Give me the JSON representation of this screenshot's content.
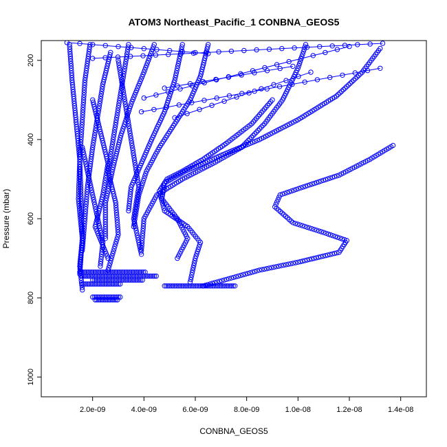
{
  "chart_data": {
    "type": "scatter",
    "title": "ATOM3 Northeast_Pacific_1 CONBNA_GEOS5",
    "xlabel": "CONBNA_GEOS5",
    "ylabel": "Pressure (mbar)",
    "xlim": [
      0,
      1.5e-08
    ],
    "ylim": [
      1050,
      150
    ],
    "y_inverted": true,
    "grid": false,
    "legend": "none",
    "x_ticks": [
      {
        "value": 2e-09,
        "label": "2.0e-09"
      },
      {
        "value": 4e-09,
        "label": "4.0e-09"
      },
      {
        "value": 6e-09,
        "label": "6.0e-09"
      },
      {
        "value": 8e-09,
        "label": "8.0e-09"
      },
      {
        "value": 1e-08,
        "label": "1.0e-08"
      },
      {
        "value": 1.2e-08,
        "label": "1.2e-08"
      },
      {
        "value": 1.4e-08,
        "label": "1.4e-08"
      }
    ],
    "y_ticks": [
      {
        "value": 200,
        "label": "200"
      },
      {
        "value": 400,
        "label": "400"
      },
      {
        "value": 600,
        "label": "600"
      },
      {
        "value": 800,
        "label": "800"
      },
      {
        "value": 1000,
        "label": "1000"
      }
    ],
    "marker": "open-circle",
    "color": "#0000ff",
    "series": [
      {
        "x": [
          1.9e-09,
          1.7e-09,
          1.6e-09,
          1.5e-09,
          1.55e-09,
          1.6e-09,
          1.5e-09,
          1.6e-09
        ],
        "y": [
          160,
          250,
          350,
          450,
          550,
          650,
          720,
          780
        ]
      },
      {
        "x": [
          1.1e-09,
          1.2e-09,
          1.35e-09,
          1.5e-09,
          1.45e-09,
          1.6e-09,
          1.5e-09
        ],
        "y": [
          160,
          250,
          350,
          450,
          550,
          650,
          740
        ]
      },
      {
        "x": [
          2.7e-09,
          2.4e-09,
          2.2e-09,
          2e-09,
          1.8e-09,
          1.7e-09,
          1.6e-09
        ],
        "y": [
          180,
          260,
          340,
          420,
          520,
          600,
          680
        ]
      },
      {
        "x": [
          3.4e-09,
          3.2e-09,
          3e-09,
          2.8e-09,
          2.6e-09,
          2.9e-09,
          3e-09,
          2.6e-09
        ],
        "y": [
          160,
          240,
          320,
          400,
          480,
          560,
          640,
          730
        ]
      },
      {
        "x": [
          4.4e-09,
          4e-09,
          3.5e-09,
          3.1e-09,
          2.8e-09,
          2.5e-09,
          2.5e-09
        ],
        "y": [
          160,
          230,
          310,
          390,
          470,
          560,
          650
        ]
      },
      {
        "x": [
          3e-09,
          3.2e-09,
          3.4e-09,
          3.6e-09,
          3.8e-09,
          3.6e-09,
          3.9e-09
        ],
        "y": [
          200,
          280,
          360,
          440,
          520,
          600,
          690
        ]
      },
      {
        "x": [
          5.5e-09,
          5.2e-09,
          4.8e-09,
          4.3e-09,
          3.9e-09,
          3.5e-09,
          3.4e-09
        ],
        "y": [
          160,
          250,
          330,
          400,
          460,
          520,
          580
        ]
      },
      {
        "x": [
          6.5e-09,
          6.2e-09,
          5.8e-09,
          5.2e-09,
          4.6e-09,
          4.1e-09,
          3.8e-09,
          3.6e-09
        ],
        "y": [
          160,
          240,
          300,
          360,
          420,
          480,
          540,
          620
        ]
      },
      {
        "x": [
          1.03e-08,
          1e-08,
          9.4e-09,
          8.7e-09,
          7.8e-09,
          6.7e-09,
          5.5e-09,
          4.5e-09,
          4e-09,
          3.9e-09
        ],
        "y": [
          160,
          220,
          300,
          360,
          420,
          460,
          500,
          540,
          600,
          680
        ]
      },
      {
        "x": [
          1.32e-08,
          1.25e-08,
          1.15e-08,
          1e-08,
          8.5e-09,
          7e-09,
          5.6e-09,
          4.8e-09,
          4.7e-09,
          5.3e-09,
          5.7e-09,
          5.3e-09
        ],
        "y": [
          170,
          230,
          290,
          350,
          400,
          440,
          480,
          510,
          550,
          600,
          650,
          700
        ]
      },
      {
        "x": [
          1.37e-08,
          1.28e-08,
          1.16e-08,
          1.02e-08,
          9.3e-09,
          9.1e-09,
          9.8e-09,
          1.1e-08,
          1.19e-08,
          1.16e-08,
          1e-08,
          8.5e-09,
          7.4e-09,
          6.3e-09
        ],
        "y": [
          415,
          450,
          490,
          520,
          540,
          570,
          610,
          635,
          655,
          685,
          710,
          730,
          750,
          770
        ]
      },
      {
        "x": [
          9e-09,
          8.2e-09,
          7.2e-09,
          6.3e-09,
          5.5e-09,
          4.9e-09,
          4.6e-09,
          4.8e-09,
          5.7e-09,
          6.2e-09,
          6e-09,
          5.8e-09
        ],
        "y": [
          300,
          360,
          410,
          450,
          480,
          500,
          530,
          580,
          620,
          660,
          700,
          760
        ]
      },
      {
        "x": [
          1.6e-09,
          1.8e-09,
          2e-09,
          2.2e-09,
          2.4e-09,
          2.3e-09
        ],
        "y": [
          420,
          480,
          540,
          600,
          660,
          720
        ]
      },
      {
        "x": [
          2e-09,
          2.3e-09,
          2.6e-09,
          2.4e-09,
          2.1e-09,
          2.6e-09
        ],
        "y": [
          300,
          380,
          460,
          540,
          620,
          700
        ]
      }
    ],
    "horizontal_runs": [
      {
        "x": [
          1.5e-09,
          4.1e-09
        ],
        "y": 735
      },
      {
        "x": [
          1.6e-09,
          4.5e-09
        ],
        "y": 745
      },
      {
        "x": [
          2e-09,
          4e-09
        ],
        "y": 755
      },
      {
        "x": [
          1.6e-09,
          3.1e-09
        ],
        "y": 765
      },
      {
        "x": [
          4.8e-09,
          7.6e-09
        ],
        "y": 770
      },
      {
        "x": [
          2e-09,
          3.1e-09
        ],
        "y": 798
      },
      {
        "x": [
          2.1e-09,
          3e-09
        ],
        "y": 805
      }
    ],
    "connector_lines": [
      {
        "x": [
          1e-09,
          6.5e-09
        ],
        "y": [
          155,
          183
        ]
      },
      {
        "x": [
          2e-09,
          1.33e-08
        ],
        "y": [
          195,
          157
        ]
      },
      {
        "x": [
          3.9e-09,
          1.32e-08
        ],
        "y": [
          330,
          220
        ]
      },
      {
        "x": [
          4.8e-09,
          9.8e-09
        ],
        "y": [
          270,
          215
        ]
      },
      {
        "x": [
          5.2e-09,
          1.05e-08
        ],
        "y": [
          345,
          230
        ]
      },
      {
        "x": [
          4e-09,
          1.2e-08
        ],
        "y": [
          295,
          165
        ]
      }
    ]
  }
}
